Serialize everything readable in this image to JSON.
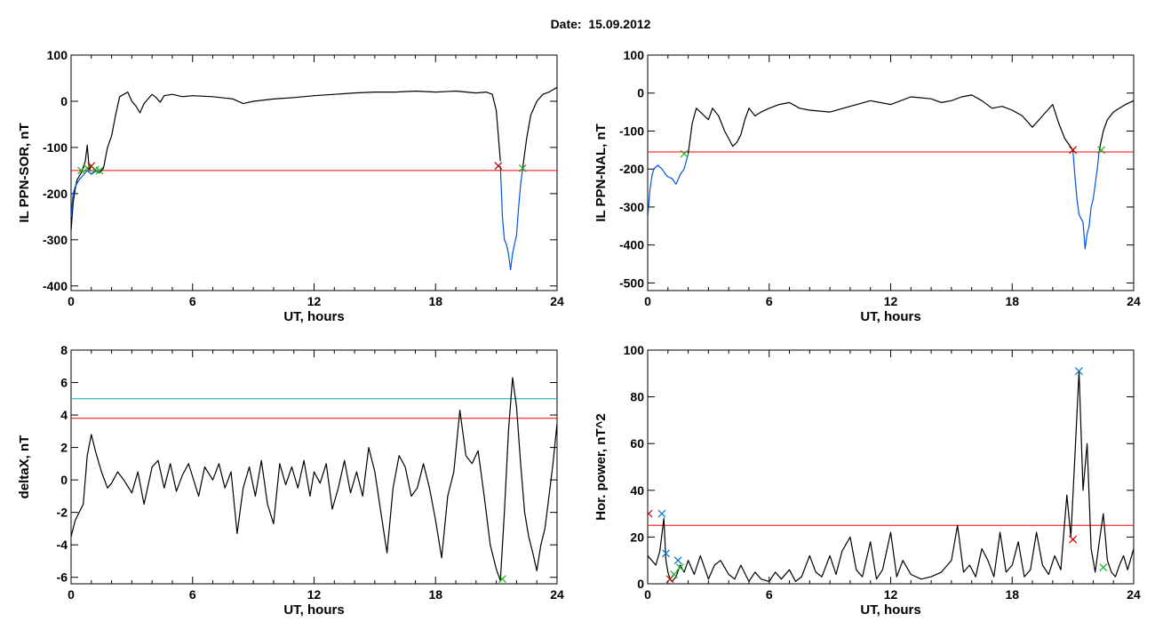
{
  "header": {
    "date_label": "Date:",
    "date_value": "15.09.2012"
  },
  "chart_data": [
    {
      "id": "ppn-sor",
      "type": "line",
      "title": "",
      "xlabel": "UT, hours",
      "ylabel": "IL PPN-SOR, nT",
      "xlim": [
        0,
        24
      ],
      "ylim": [
        -410,
        100
      ],
      "xticks": [
        0,
        6,
        12,
        18,
        24
      ],
      "yticks": [
        -400,
        -300,
        -200,
        -100,
        0,
        100
      ],
      "threshold_lines": [
        {
          "y": -150,
          "color": "#ff0000"
        }
      ],
      "series": [
        {
          "color": "#000000",
          "x": [
            0,
            0.1,
            0.2,
            0.3,
            0.5,
            0.7,
            0.8,
            0.9,
            1.0,
            1.2,
            1.4,
            1.6,
            1.8,
            2.0,
            2.2,
            2.4,
            2.6,
            2.8,
            3.0,
            3.2,
            3.4,
            3.6,
            3.8,
            4.0,
            4.2,
            4.4,
            4.6,
            5.0,
            5.5,
            6.0,
            7.0,
            8.0,
            8.5,
            9.0,
            10.0,
            11.0,
            12.0,
            13.0,
            14.0,
            15.0,
            16.0,
            17.0,
            18.0,
            19.0,
            20.0,
            20.5,
            20.8,
            21.0,
            21.2
          ],
          "y": [
            -280,
            -220,
            -190,
            -170,
            -155,
            -130,
            -95,
            -150,
            -140,
            -150,
            -155,
            -145,
            -100,
            -75,
            -30,
            10,
            15,
            20,
            0,
            -10,
            -25,
            -5,
            5,
            15,
            8,
            -2,
            12,
            15,
            10,
            12,
            10,
            5,
            -5,
            0,
            5,
            8,
            12,
            15,
            18,
            20,
            20,
            22,
            20,
            22,
            18,
            20,
            15,
            -20,
            -130
          ]
        },
        {
          "color": "#0055dd",
          "x": [
            0.0,
            0.1,
            0.2,
            0.4,
            0.6,
            0.8,
            1.0,
            1.2,
            1.4
          ],
          "y": [
            -250,
            -200,
            -185,
            -170,
            -160,
            -150,
            -158,
            -152,
            -150
          ]
        },
        {
          "color": "#0055dd",
          "x": [
            21.2,
            21.3,
            21.4,
            21.5,
            21.6,
            21.7,
            21.8,
            21.9,
            22.0,
            22.1,
            22.2,
            22.3
          ],
          "y": [
            -140,
            -250,
            -300,
            -310,
            -330,
            -365,
            -330,
            -310,
            -290,
            -230,
            -180,
            -145
          ]
        },
        {
          "color": "#000000",
          "x": [
            22.3,
            22.5,
            22.7,
            23.0,
            23.3,
            23.6,
            23.8,
            24.0
          ],
          "y": [
            -145,
            -80,
            -30,
            0,
            15,
            20,
            25,
            30
          ]
        }
      ],
      "markers": [
        {
          "x": 0.5,
          "y": -150,
          "color": "#22aa22"
        },
        {
          "x": 0.8,
          "y": -145,
          "color": "#22aa22"
        },
        {
          "x": 1.0,
          "y": -140,
          "color": "#cc0000"
        },
        {
          "x": 1.2,
          "y": -148,
          "color": "#22aa22"
        },
        {
          "x": 1.4,
          "y": -150,
          "color": "#22aa22"
        },
        {
          "x": 21.1,
          "y": -140,
          "color": "#aa0000"
        },
        {
          "x": 22.3,
          "y": -145,
          "color": "#22aa22"
        }
      ]
    },
    {
      "id": "ppn-nal",
      "type": "line",
      "title": "",
      "xlabel": "UT, hours",
      "ylabel": "IL PPN-NAL, nT",
      "xlim": [
        0,
        24
      ],
      "ylim": [
        -520,
        100
      ],
      "xticks": [
        0,
        6,
        12,
        18,
        24
      ],
      "yticks": [
        -500,
        -400,
        -300,
        -200,
        -100,
        0,
        100
      ],
      "threshold_lines": [
        {
          "y": -155,
          "color": "#ff0000"
        }
      ],
      "series": [
        {
          "color": "#000000",
          "x": [
            2.0,
            2.2,
            2.4,
            2.6,
            2.8,
            3.0,
            3.2,
            3.5,
            3.8,
            4.0,
            4.2,
            4.4,
            4.6,
            4.8,
            5.0,
            5.3,
            5.6,
            6.0,
            6.5,
            7.0,
            7.5,
            8.0,
            9.0,
            10.0,
            11.0,
            12.0,
            13.0,
            14.0,
            14.5,
            15.0,
            15.5,
            16.0,
            16.5,
            17.0,
            17.5,
            18.0,
            18.5,
            19.0,
            19.5,
            20.0,
            20.3,
            20.6,
            21.0
          ],
          "y": [
            -160,
            -80,
            -40,
            -50,
            -60,
            -70,
            -40,
            -60,
            -100,
            -120,
            -140,
            -130,
            -110,
            -70,
            -40,
            -60,
            -50,
            -40,
            -30,
            -25,
            -40,
            -45,
            -50,
            -35,
            -20,
            -30,
            -10,
            -15,
            -25,
            -20,
            -10,
            -5,
            -20,
            -40,
            -35,
            -45,
            -60,
            -90,
            -60,
            -30,
            -80,
            -120,
            -150
          ]
        },
        {
          "color": "#0055dd",
          "x": [
            0,
            0.1,
            0.2,
            0.3,
            0.5,
            0.7,
            0.9,
            1.0,
            1.2,
            1.4,
            1.6,
            1.8,
            2.0
          ],
          "y": [
            -330,
            -260,
            -220,
            -200,
            -190,
            -200,
            -215,
            -220,
            -225,
            -240,
            -215,
            -200,
            -160
          ]
        },
        {
          "color": "#0055dd",
          "x": [
            21.0,
            21.1,
            21.2,
            21.3,
            21.4,
            21.5,
            21.6,
            21.7,
            21.8,
            21.9,
            22.0,
            22.1,
            22.2,
            22.3
          ],
          "y": [
            -150,
            -220,
            -280,
            -320,
            -330,
            -340,
            -410,
            -370,
            -350,
            -300,
            -280,
            -240,
            -200,
            -150
          ]
        },
        {
          "color": "#000000",
          "x": [
            22.3,
            22.5,
            22.7,
            23.0,
            23.3,
            23.6,
            24.0
          ],
          "y": [
            -150,
            -100,
            -70,
            -50,
            -40,
            -30,
            -20
          ]
        }
      ],
      "markers": [
        {
          "x": 1.8,
          "y": -160,
          "color": "#22aa22"
        },
        {
          "x": 21.0,
          "y": -150,
          "color": "#aa0000"
        },
        {
          "x": 22.4,
          "y": -150,
          "color": "#22aa22"
        }
      ]
    },
    {
      "id": "deltax",
      "type": "line",
      "title": "",
      "xlabel": "UT, hours",
      "ylabel": "deltaX, nT",
      "xlim": [
        0,
        24
      ],
      "ylim": [
        -6.4,
        8
      ],
      "xticks": [
        0,
        6,
        12,
        18,
        24
      ],
      "yticks": [
        -6,
        -4,
        -2,
        0,
        2,
        4,
        6,
        8
      ],
      "threshold_lines": [
        {
          "y": 5.0,
          "color": "#00aaaa"
        },
        {
          "y": 3.8,
          "color": "#ff0000"
        }
      ],
      "series": [
        {
          "color": "#000000",
          "x": [
            0,
            0.2,
            0.4,
            0.6,
            0.8,
            1.0,
            1.2,
            1.5,
            1.8,
            2.0,
            2.3,
            2.6,
            3.0,
            3.3,
            3.6,
            4.0,
            4.3,
            4.6,
            4.9,
            5.2,
            5.5,
            5.8,
            6.0,
            6.3,
            6.6,
            7.0,
            7.3,
            7.6,
            7.9,
            8.2,
            8.5,
            8.8,
            9.1,
            9.4,
            9.7,
            10.0,
            10.3,
            10.6,
            10.9,
            11.2,
            11.5,
            11.8,
            12.0,
            12.3,
            12.6,
            12.9,
            13.2,
            13.5,
            13.8,
            14.1,
            14.4,
            14.7,
            15.0,
            15.3,
            15.6,
            15.9,
            16.2,
            16.5,
            16.8,
            17.1,
            17.4,
            17.7,
            18.0,
            18.3,
            18.6,
            18.9,
            19.2,
            19.5,
            19.8,
            20.1,
            20.4,
            20.7,
            21.0,
            21.2,
            21.4,
            21.6,
            21.8,
            22.0,
            22.2,
            22.4,
            22.6,
            22.8,
            23.0,
            23.2,
            23.4,
            23.6,
            23.8,
            24.0
          ],
          "y": [
            -3.5,
            -2.5,
            -2.0,
            -1.5,
            1.5,
            2.8,
            1.8,
            0.5,
            -0.5,
            -0.2,
            0.5,
            0.0,
            -0.8,
            0.5,
            -1.5,
            0.8,
            1.2,
            -0.5,
            1.0,
            -0.7,
            0.3,
            1.0,
            0.2,
            -1.0,
            0.8,
            0.0,
            1.0,
            -0.5,
            0.5,
            -3.3,
            -0.5,
            0.8,
            -1.0,
            1.2,
            -1.5,
            -2.7,
            1.0,
            -0.3,
            0.8,
            -0.5,
            1.2,
            -1.0,
            0.5,
            -0.2,
            1.0,
            -1.8,
            -0.5,
            1.2,
            -0.8,
            0.5,
            -1.0,
            2.0,
            0.5,
            -2.0,
            -4.5,
            -0.5,
            1.5,
            0.8,
            -1.0,
            -0.5,
            1.0,
            -0.5,
            -2.5,
            -4.8,
            -1.0,
            0.5,
            4.3,
            1.5,
            1.0,
            1.8,
            -1.0,
            -4.0,
            -5.5,
            -6.2,
            -2.0,
            3.0,
            6.3,
            4.5,
            1.0,
            -2.0,
            -3.5,
            -4.5,
            -5.6,
            -4.0,
            -3.0,
            -1.0,
            1.0,
            3.5
          ]
        }
      ],
      "markers": [
        {
          "x": 21.3,
          "y": -6.1,
          "color": "#22aa22"
        }
      ]
    },
    {
      "id": "hor-power",
      "type": "line",
      "title": "",
      "xlabel": "UT, hours",
      "ylabel": "Hor. power, nT^2",
      "xlim": [
        0,
        24
      ],
      "ylim": [
        0,
        100
      ],
      "xticks": [
        0,
        6,
        12,
        18,
        24
      ],
      "yticks": [
        0,
        20,
        40,
        60,
        80,
        100
      ],
      "threshold_lines": [
        {
          "y": 25,
          "color": "#ff0000"
        }
      ],
      "series": [
        {
          "color": "#000000",
          "x": [
            0,
            0.2,
            0.4,
            0.6,
            0.8,
            0.9,
            1.0,
            1.1,
            1.2,
            1.4,
            1.6,
            1.8,
            2.0,
            2.3,
            2.6,
            3.0,
            3.3,
            3.6,
            4.0,
            4.3,
            4.6,
            5.0,
            5.3,
            5.6,
            6.0,
            6.3,
            6.6,
            7.0,
            7.3,
            7.6,
            8.0,
            8.3,
            8.6,
            9.0,
            9.3,
            9.6,
            10.0,
            10.3,
            10.6,
            11.0,
            11.3,
            11.6,
            12.0,
            12.3,
            12.6,
            13.0,
            13.5,
            14.0,
            14.5,
            15.0,
            15.3,
            15.6,
            15.9,
            16.2,
            16.5,
            16.8,
            17.1,
            17.4,
            17.7,
            18.0,
            18.3,
            18.6,
            18.9,
            19.2,
            19.5,
            19.8,
            20.1,
            20.4,
            20.7,
            20.9,
            21.1,
            21.3,
            21.5,
            21.7,
            21.9,
            22.1,
            22.3,
            22.5,
            22.7,
            22.9,
            23.1,
            23.3,
            23.5,
            23.7,
            24.0
          ],
          "y": [
            12,
            10,
            8,
            14,
            28,
            10,
            5,
            2,
            1,
            3,
            8,
            5,
            10,
            4,
            12,
            2,
            8,
            10,
            4,
            2,
            8,
            1,
            5,
            2,
            1,
            5,
            2,
            6,
            1,
            3,
            12,
            5,
            3,
            12,
            4,
            14,
            20,
            6,
            3,
            18,
            2,
            6,
            22,
            3,
            10,
            4,
            2,
            3,
            5,
            10,
            25,
            5,
            8,
            3,
            15,
            10,
            3,
            22,
            5,
            8,
            18,
            3,
            6,
            22,
            8,
            4,
            12,
            6,
            38,
            20,
            55,
            91,
            40,
            60,
            15,
            5,
            18,
            30,
            10,
            5,
            3,
            8,
            12,
            6,
            15
          ]
        }
      ],
      "markers": [
        {
          "x": 0.05,
          "y": 30,
          "color": "#cc0000"
        },
        {
          "x": 0.7,
          "y": 30,
          "color": "#0077cc"
        },
        {
          "x": 0.9,
          "y": 13,
          "color": "#0077cc"
        },
        {
          "x": 1.1,
          "y": 2,
          "color": "#cc0000"
        },
        {
          "x": 1.3,
          "y": 4,
          "color": "#22aa22"
        },
        {
          "x": 1.5,
          "y": 10,
          "color": "#0077cc"
        },
        {
          "x": 1.6,
          "y": 7,
          "color": "#22aa22"
        },
        {
          "x": 21.0,
          "y": 19,
          "color": "#cc0000"
        },
        {
          "x": 21.3,
          "y": 91,
          "color": "#0077cc"
        },
        {
          "x": 22.5,
          "y": 7,
          "color": "#22aa22"
        }
      ]
    }
  ]
}
